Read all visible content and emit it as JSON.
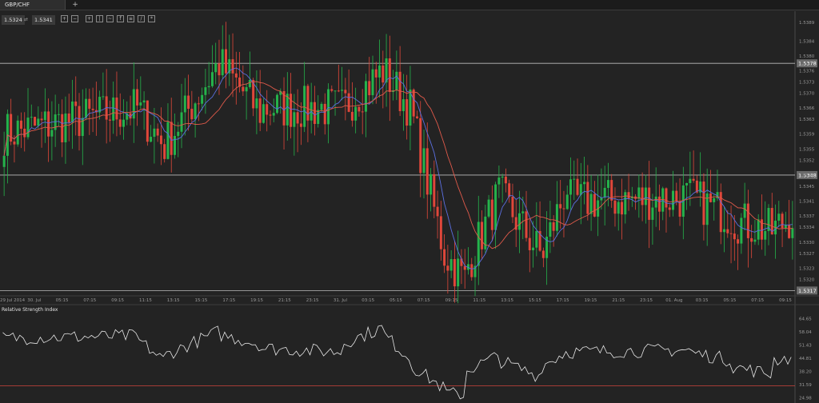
{
  "tab": {
    "label": "GBP/CHF",
    "add_label": "+"
  },
  "toolbar": {
    "bid": "1.5324",
    "ask": "1.5341",
    "tools": [
      "zoom-in-icon",
      "zoom-out-icon",
      "crosshair-icon",
      "candles-icon",
      "chart-type-icon",
      "indicators-icon",
      "templates-icon",
      "draw-icon",
      "settings-icon"
    ]
  },
  "price_axis": {
    "ticks": [
      "1.5389",
      "1.5384",
      "1.5380",
      "1.5376",
      "1.5373",
      "1.5370",
      "1.5366",
      "1.5363",
      "1.5359",
      "1.5355",
      "1.5352",
      "1.5348",
      "1.5345",
      "1.5341",
      "1.5337",
      "1.5334",
      "1.5330",
      "1.5327",
      "1.5323",
      "1.5320"
    ],
    "ylim": [
      1.5316,
      1.5392
    ]
  },
  "horizontal_lines": [
    {
      "label": "1.5378",
      "value": 1.5378
    },
    {
      "label": "1.5348",
      "value": 1.5348
    },
    {
      "label": "1.5317",
      "value": 1.5317
    }
  ],
  "time_axis": [
    "29 Jul 2014",
    "30. Jul",
    "05:15",
    "07:15",
    "09:15",
    "11:15",
    "13:15",
    "15:15",
    "17:15",
    "19:15",
    "21:15",
    "23:15",
    "31. Jul",
    "03:15",
    "05:15",
    "07:15",
    "09:15",
    "11:15",
    "13:15",
    "15:15",
    "17:15",
    "19:15",
    "21:15",
    "23:15",
    "01. Aug",
    "03:15",
    "05:15",
    "07:15",
    "09:15"
  ],
  "indicator": {
    "title": "Relative Strength Index",
    "ticks": [
      "64.65",
      "58.04",
      "51.43",
      "44.81",
      "38.20",
      "31.59",
      "24.98"
    ],
    "ylim": [
      24.0,
      66.5
    ],
    "level": 31.0
  },
  "colors": {
    "up": "#25b34b",
    "down": "#e0473a",
    "ma_fast": "#5b6fe0",
    "ma_slow": "#e05a4a",
    "rsi": "#e6e6e6",
    "level": "#b8413a"
  },
  "chart_data": {
    "type": "candlestick",
    "segments": [
      {
        "n": 40,
        "from": 1.5359,
        "to": 1.5366
      },
      {
        "n": 8,
        "from": 1.5366,
        "to": 1.5356
      },
      {
        "n": 16,
        "from": 1.5356,
        "to": 1.5378
      },
      {
        "n": 12,
        "from": 1.5378,
        "to": 1.5365
      },
      {
        "n": 24,
        "from": 1.5366,
        "to": 1.5366
      },
      {
        "n": 12,
        "from": 1.5366,
        "to": 1.5376
      },
      {
        "n": 8,
        "from": 1.5376,
        "to": 1.5366
      },
      {
        "n": 10,
        "from": 1.5366,
        "to": 1.5327
      },
      {
        "n": 6,
        "from": 1.5327,
        "to": 1.532
      },
      {
        "n": 10,
        "from": 1.5322,
        "to": 1.5343
      },
      {
        "n": 12,
        "from": 1.5343,
        "to": 1.5327
      },
      {
        "n": 8,
        "from": 1.5325,
        "to": 1.5345
      },
      {
        "n": 36,
        "from": 1.5341,
        "to": 1.5342
      },
      {
        "n": 12,
        "from": 1.5342,
        "to": 1.5337
      },
      {
        "n": 12,
        "from": 1.5336,
        "to": 1.5333
      },
      {
        "n": 6,
        "from": 1.5333,
        "to": 1.5337
      }
    ],
    "rsi_segments": [
      {
        "n": 40,
        "from": 55,
        "to": 56
      },
      {
        "n": 8,
        "from": 55,
        "to": 44
      },
      {
        "n": 16,
        "from": 46,
        "to": 58
      },
      {
        "n": 12,
        "from": 57,
        "to": 52
      },
      {
        "n": 24,
        "from": 50,
        "to": 48
      },
      {
        "n": 12,
        "from": 52,
        "to": 60
      },
      {
        "n": 8,
        "from": 58,
        "to": 45
      },
      {
        "n": 10,
        "from": 42,
        "to": 30
      },
      {
        "n": 6,
        "from": 28,
        "to": 26
      },
      {
        "n": 10,
        "from": 38,
        "to": 46
      },
      {
        "n": 12,
        "from": 44,
        "to": 36
      },
      {
        "n": 8,
        "from": 40,
        "to": 48
      },
      {
        "n": 36,
        "from": 48,
        "to": 49
      },
      {
        "n": 12,
        "from": 48,
        "to": 44
      },
      {
        "n": 12,
        "from": 41,
        "to": 37
      },
      {
        "n": 6,
        "from": 44,
        "to": 45
      }
    ]
  }
}
